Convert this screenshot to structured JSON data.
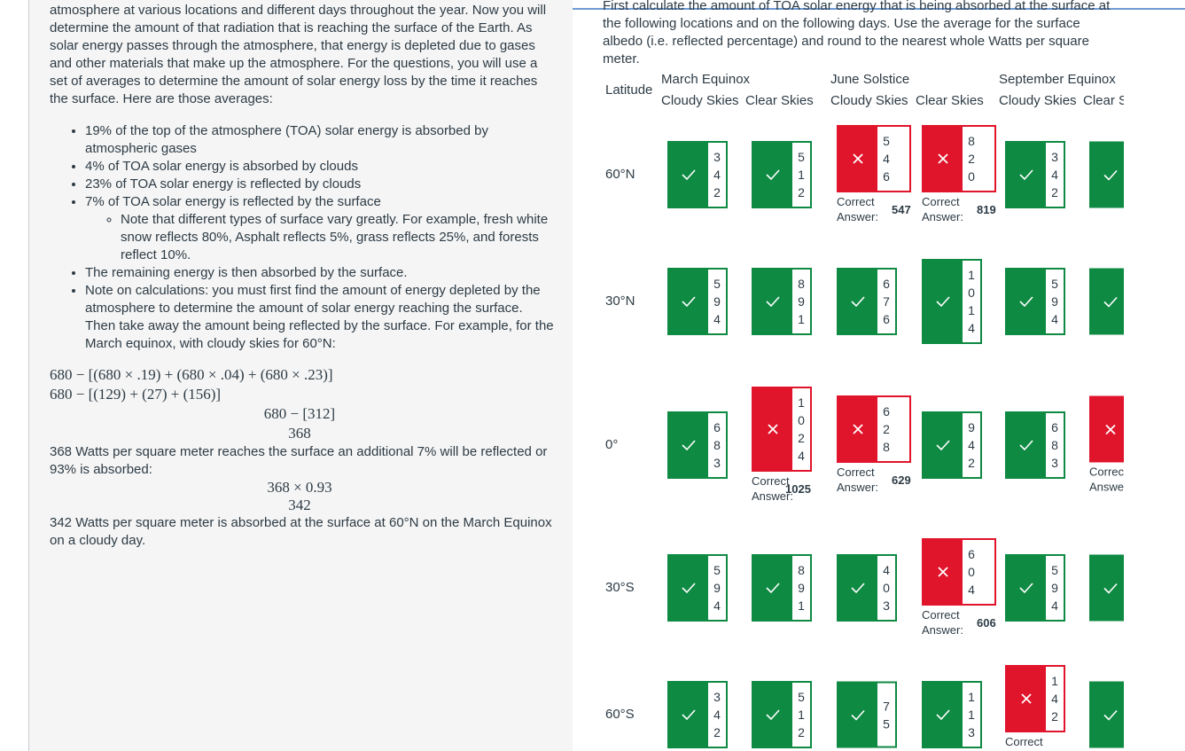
{
  "left": {
    "intro": "atmosphere at various locations and different days throughout the year. Now you will determine the amount of that radiation that is reaching the surface of the Earth. As solar energy passes through the atmosphere, that energy is depleted due to gases and other materials that make up the atmosphere. For the questions, you will use a set of averages to determine the amount of solar energy loss by the time it reaches the surface. Here are those averages:",
    "bullets": [
      "19% of the top of the atmosphere (TOA) solar energy is absorbed by atmospheric gases",
      "4% of TOA solar energy is absorbed by clouds",
      "23% of TOA solar energy is reflected by clouds",
      "7% of TOA solar energy is reflected by the surface"
    ],
    "sub_bullet": "Note that different types of surface vary greatly. For example, fresh white snow reflects 80%, Asphalt reflects 5%, grass reflects 25%, and forests reflect 10%.",
    "bullets2": [
      "The remaining energy is then absorbed by the surface.",
      "Note on calculations: you must first find the amount of energy depleted by the atmosphere to determine the amount of solar energy reaching the surface. Then take away the amount being reflected by the surface. For example, for the March equinox, with cloudy skies for 60°N:"
    ],
    "math": [
      "680 − [(680 × .19) + (680 × .04) + (680 × .23)]",
      "680 − [(129) + (27) + (156)]",
      "680 − [312]",
      "368"
    ],
    "p2": "368 Watts per square meter reaches the surface an additional 7% will be reflected or 93% is absorbed:",
    "math2": [
      "368 × 0.93",
      "342"
    ],
    "p3": "342 Watts per square meter is absorbed at the surface at 60°N on the March Equinox on a cloudy day."
  },
  "right": {
    "instructions": "First calculate the amount of TOA solar energy that is being absorbed at the surface at the following locations and on the following days. Use the average for the surface albedo (i.e. reflected percentage) and round to the nearest whole Watts per square meter.",
    "table": {
      "latitude_header": "Latitude",
      "groups": [
        "March Equinox",
        "June Solstice",
        "September Equinox"
      ],
      "subheaders": [
        "Cloudy Skies",
        "Clear Skies",
        "Cloudy Skies",
        "Clear Skies",
        "Cloudy Skies",
        "Clear Skies"
      ],
      "rows": [
        {
          "label": "60°N",
          "cells": [
            {
              "answer": "342",
              "status": "correct"
            },
            {
              "answer": "512",
              "status": "correct"
            },
            {
              "answer": "546",
              "status": "incorrect",
              "correct_label": "Correct Answer:",
              "correct_value": "547"
            },
            {
              "answer": "820",
              "status": "incorrect",
              "correct_label": "Correct Answer:",
              "correct_value": "819"
            },
            {
              "answer": "342",
              "status": "correct"
            },
            {
              "status": "correct"
            }
          ]
        },
        {
          "label": "30°N",
          "cells": [
            {
              "answer": "594",
              "status": "correct"
            },
            {
              "answer": "891",
              "status": "correct"
            },
            {
              "answer": "676",
              "status": "correct"
            },
            {
              "answer": "1014",
              "status": "correct"
            },
            {
              "answer": "594",
              "status": "correct"
            },
            {
              "status": "correct"
            }
          ]
        },
        {
          "label": "0°",
          "cells": [
            {
              "answer": "683",
              "status": "correct"
            },
            {
              "answer": "1024",
              "status": "incorrect",
              "correct_label": "Correct Answer:",
              "correct_value": "1025"
            },
            {
              "answer": "628",
              "status": "incorrect",
              "correct_label": "Correct Answer:",
              "correct_value": "629"
            },
            {
              "answer": "942",
              "status": "correct"
            },
            {
              "answer": "683",
              "status": "correct"
            },
            {
              "status": "incorrect",
              "correct_label": "Correct Answer:"
            }
          ]
        },
        {
          "label": "30°S",
          "cells": [
            {
              "answer": "594",
              "status": "correct"
            },
            {
              "answer": "891",
              "status": "correct"
            },
            {
              "answer": "403",
              "status": "correct"
            },
            {
              "answer": "604",
              "status": "incorrect",
              "correct_label": "Correct Answer:",
              "correct_value": "606"
            },
            {
              "answer": "594",
              "status": "correct"
            },
            {
              "status": "correct"
            }
          ]
        },
        {
          "label": "60°S",
          "cells": [
            {
              "answer": "342",
              "status": "correct"
            },
            {
              "answer": "512",
              "status": "correct"
            },
            {
              "answer": "75",
              "status": "correct"
            },
            {
              "answer": "113",
              "status": "correct"
            },
            {
              "answer": "142",
              "status": "incorrect",
              "correct_label": "Correct Answer:"
            },
            {
              "status": "correct"
            }
          ]
        }
      ]
    }
  }
}
